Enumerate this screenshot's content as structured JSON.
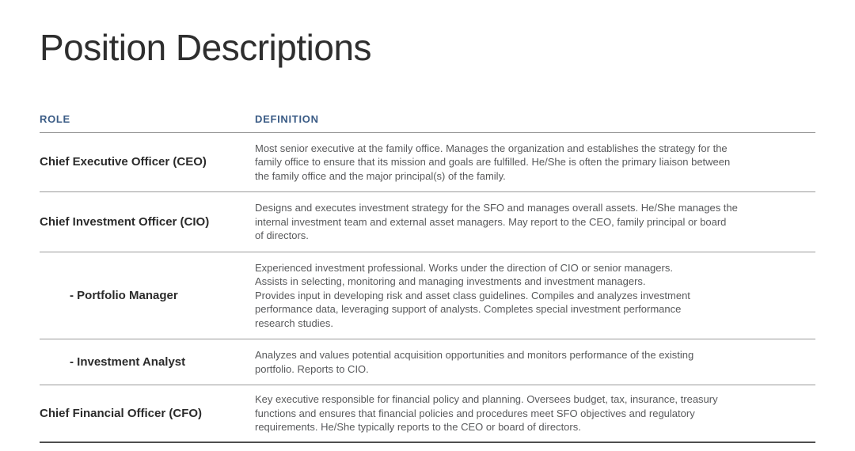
{
  "page": {
    "title": "Position Descriptions"
  },
  "table": {
    "headers": {
      "role": "ROLE",
      "definition": "DEFINITION"
    },
    "rows": [
      {
        "role": "Chief Executive Officer (CEO)",
        "indent": false,
        "definition": "Most senior executive at the family office. Manages the organization and establishes the strategy for the\nfamily office to ensure that its mission and goals are fulfilled. He/She is often the primary liaison between\nthe family office and the major principal(s) of the family."
      },
      {
        "role": "Chief Investment Officer (CIO)",
        "indent": false,
        "definition": "Designs and executes investment strategy for the SFO and manages overall assets. He/She manages the\ninternal investment team and external asset managers. May report to the CEO, family principal or board\nof directors."
      },
      {
        "role": "- Portfolio Manager",
        "indent": true,
        "definition": "Experienced investment professional. Works under the direction of CIO or senior managers.\nAssists in selecting, monitoring and managing investments and investment managers.\nProvides input in developing risk and asset class guidelines. Compiles and analyzes investment\nperformance data, leveraging support of analysts. Completes special investment performance\nresearch studies."
      },
      {
        "role": "- Investment Analyst",
        "indent": true,
        "definition": "Analyzes and values potential acquisition opportunities and monitors performance of the existing\nportfolio. Reports to CIO."
      },
      {
        "role": "Chief Financial Officer (CFO)",
        "indent": false,
        "definition": "Key executive responsible for financial policy and planning. Oversees budget, tax, insurance, treasury\nfunctions and ensures that financial policies and procedures meet SFO objectives and regulatory\nrequirements. He/She typically reports to the CEO or board of directors."
      }
    ]
  },
  "colors": {
    "header_accent": "#3a5b85",
    "title_text": "#2e2e2e",
    "role_text": "#2b2b2b",
    "definition_text": "#58595b",
    "divider": "#9b9b9b",
    "bottom_border": "#4f4f4f",
    "background": "#ffffff"
  }
}
